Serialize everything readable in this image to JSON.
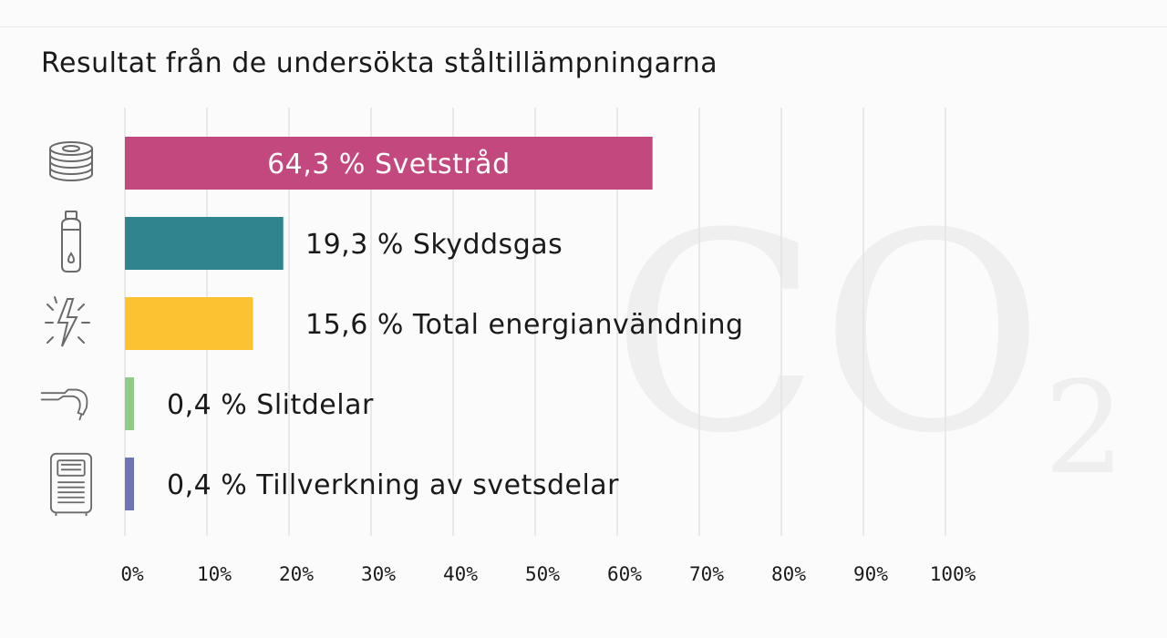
{
  "chart_data": {
    "type": "bar",
    "orientation": "horizontal",
    "title": "Resultat från de undersökta ståltillämpningarna",
    "xlim": [
      0,
      100
    ],
    "x_ticks": [
      "0%",
      "10%",
      "20%",
      "30%",
      "40%",
      "50%",
      "60%",
      "70%",
      "80%",
      "90%",
      "100%"
    ],
    "grid": true,
    "categories": [
      "Svetstråd",
      "Skyddsgas",
      "Total energianvändning",
      "Slitdelar",
      "Tillverkning av svetsdelar"
    ],
    "values": [
      64.3,
      19.3,
      15.6,
      0.4,
      0.4
    ],
    "labels": [
      "64,3 % Svetstråd",
      "19,3 % Skyddsgas",
      "15,6 % Total energianvändning",
      "0,4 % Slitdelar",
      "0,4 % Tillverkning av svetsdelar"
    ],
    "colors": [
      "#c2487d",
      "#2f848e",
      "#fcc232",
      "#8fcc8a",
      "#6d75b5"
    ],
    "icons": [
      "wire-spool-icon",
      "gas-cylinder-icon",
      "lightning-energy-icon",
      "welding-torch-icon",
      "welding-machine-icon"
    ],
    "watermark": {
      "main": "CO",
      "sub": "2"
    }
  }
}
